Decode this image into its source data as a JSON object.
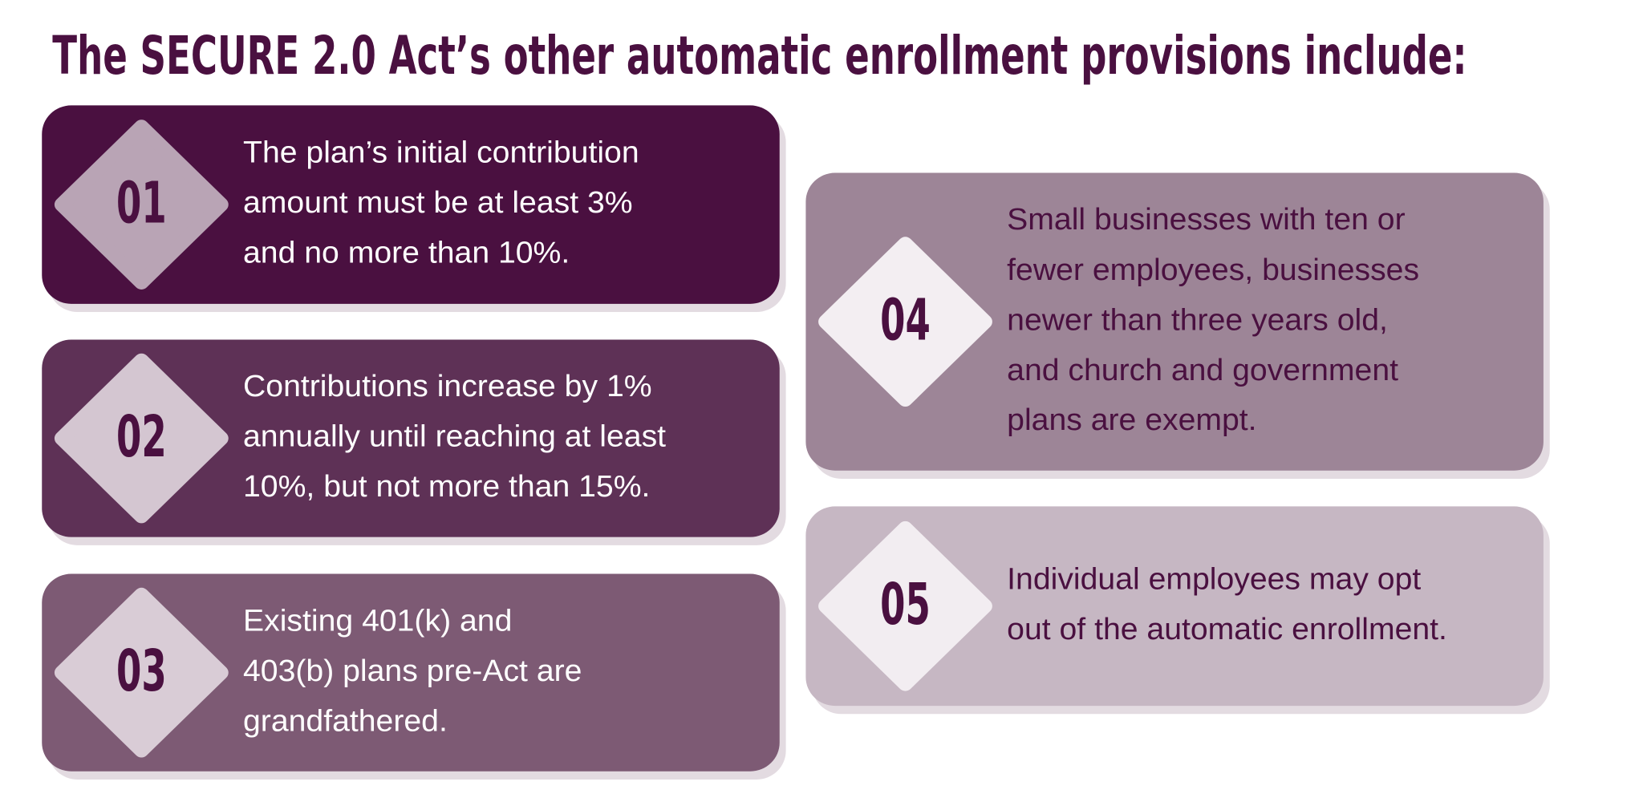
{
  "title": "The SECURE 2.0 Act’s other automatic enrollment provisions include:",
  "items": [
    {
      "number": "01",
      "lines": [
        "The plan’s initial contribution",
        "amount must be at least 3%",
        "and no more than 10%."
      ]
    },
    {
      "number": "02",
      "lines": [
        "Contributions increase by 1%",
        "annually until reaching at least",
        "10%, but not more than 15%."
      ]
    },
    {
      "number": "03",
      "lines": [
        "Existing 401(k) and",
        "403(b) plans pre-Act are",
        "grandfathered."
      ]
    },
    {
      "number": "04",
      "lines": [
        "Small businesses with ten or",
        "fewer employees, businesses",
        "newer than three years old,",
        "and church and government",
        "plans are exempt."
      ]
    },
    {
      "number": "05",
      "lines": [
        "Individual employees may opt",
        "out of the automatic enrollment."
      ]
    }
  ]
}
